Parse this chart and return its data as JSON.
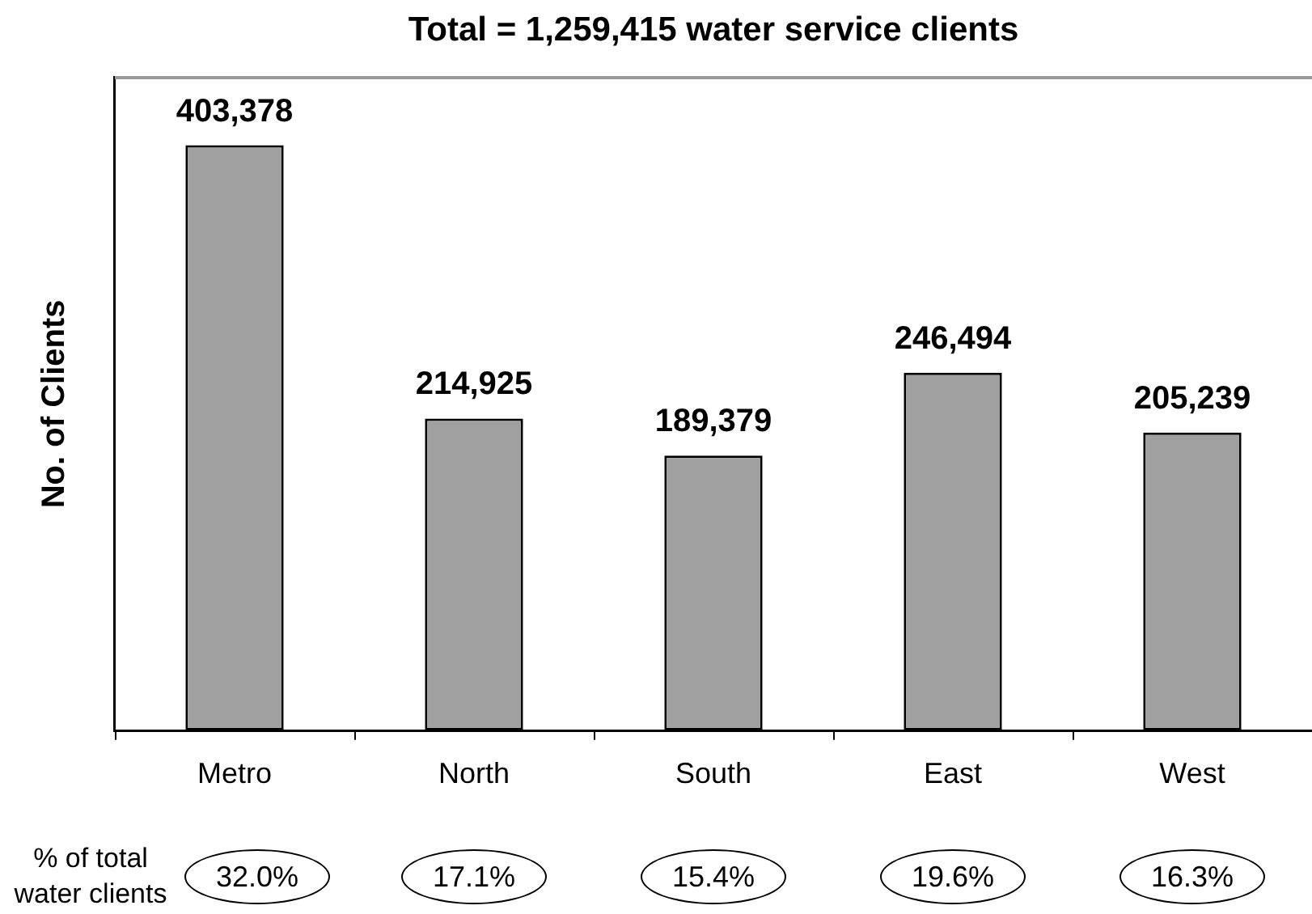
{
  "chart_data": {
    "type": "bar",
    "title": "Total = 1,259,415 water service clients",
    "ylabel": "No. of Clients",
    "categories": [
      "Metro",
      "North",
      "South",
      "East",
      "West"
    ],
    "values": [
      403378,
      214925,
      189379,
      246494,
      205239
    ],
    "color": "#a0a0a0",
    "value_labels": [
      "403,378",
      "214,925",
      "189,379",
      "246,494",
      "205,239"
    ],
    "tick_labels": "x",
    "annotations": [
      "% of total water clients",
      "32.0%",
      "17.1%",
      "15.4%",
      "19.6%",
      "16.3%"
    ]
  }
}
